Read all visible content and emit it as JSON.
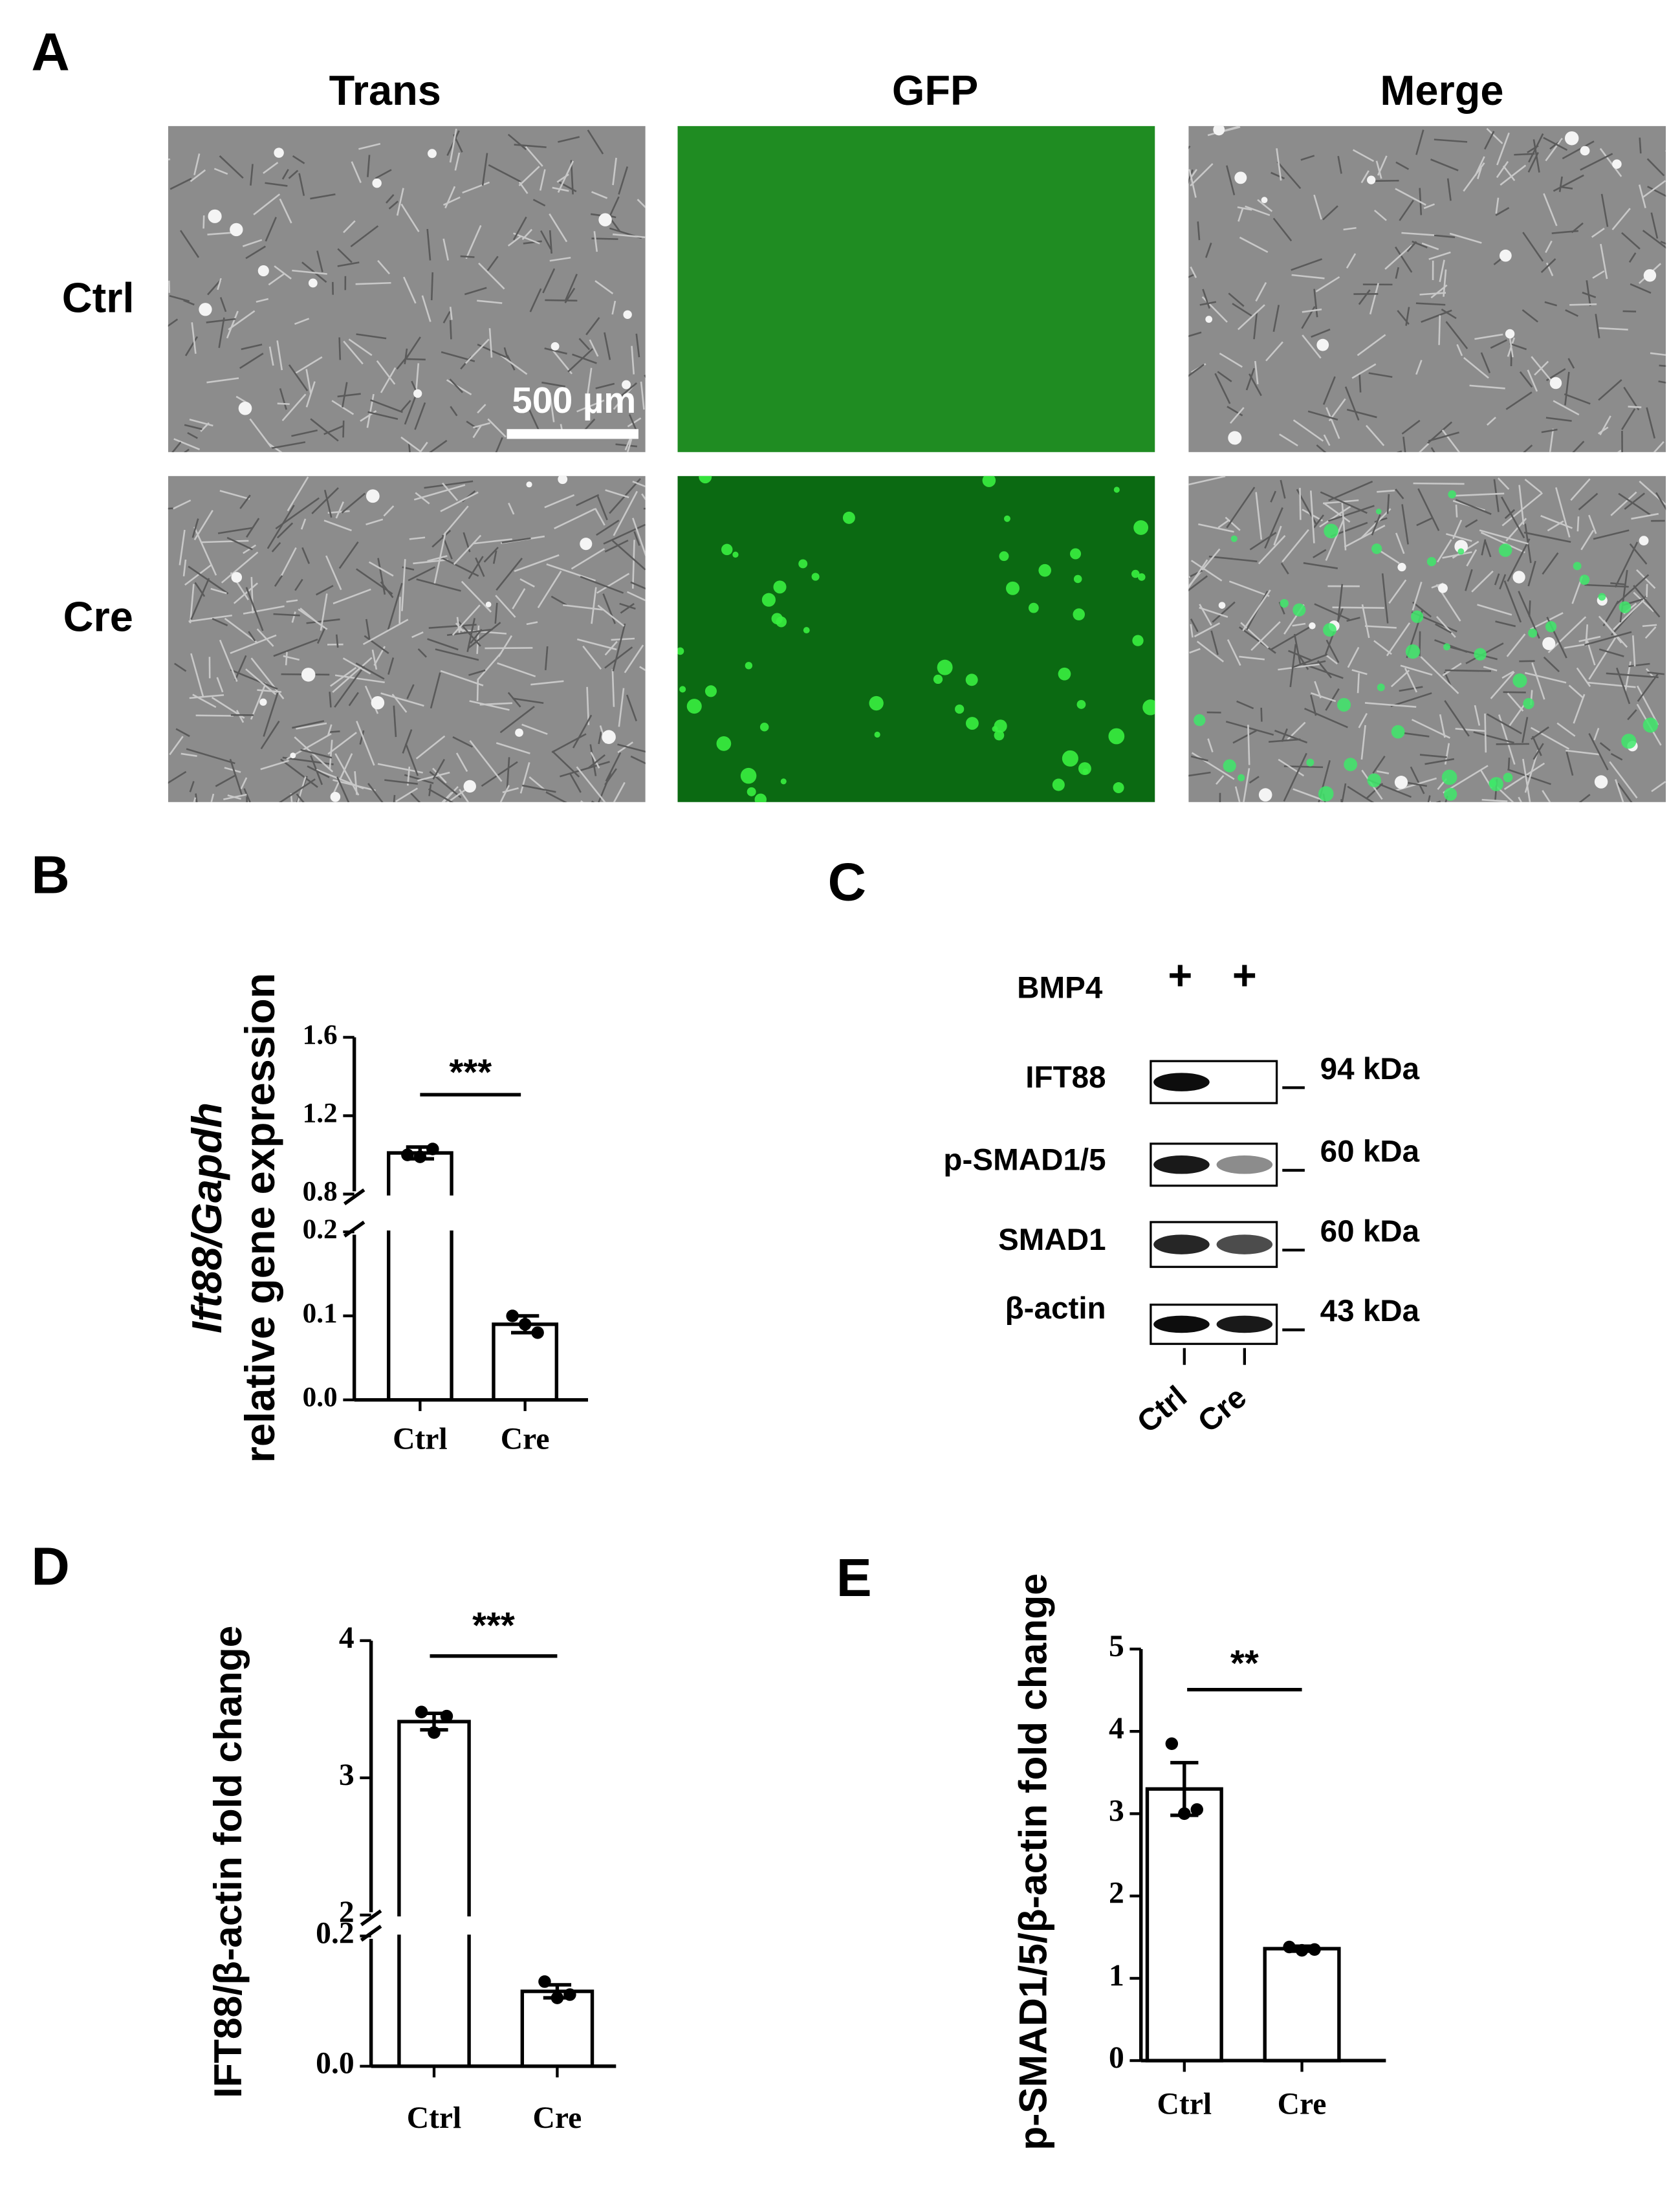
{
  "panel_labels": [
    "A",
    "B",
    "C",
    "D",
    "E"
  ],
  "microscopy": {
    "columns": [
      "Trans",
      "GFP",
      "Merge"
    ],
    "rows": [
      "Ctrl",
      "Cre"
    ],
    "scale_bar": "500 µm"
  },
  "western_blot": {
    "treatment": "BMP4",
    "treatment_marks": [
      "+",
      "+"
    ],
    "bands": [
      {
        "name": "IFT88",
        "size": "94 kDa"
      },
      {
        "name": "p-SMAD1/5",
        "size": "60 kDa"
      },
      {
        "name": "SMAD1",
        "size": "60 kDa"
      },
      {
        "name": "β-actin",
        "size": "43 kDa"
      }
    ],
    "lanes": [
      "Ctrl",
      "Cre"
    ]
  },
  "chart_data": [
    {
      "type": "bar",
      "ylabel": [
        "Ift88/Gapdh",
        "relative gene expression"
      ],
      "categories": [
        "Ctrl",
        "Cre"
      ],
      "values": [
        1.01,
        0.09
      ],
      "errors": [
        0.03,
        0.01
      ],
      "points": [
        [
          1.0,
          1.03,
          0.99
        ],
        [
          0.1,
          0.08,
          0.09
        ]
      ],
      "ylim": [
        0,
        1.6
      ],
      "axis_break": [
        0.2,
        0.8
      ],
      "yticks": [
        {
          "value": 0,
          "label": "0.0"
        },
        0.1,
        0.2,
        0.8,
        1.2,
        1.6
      ],
      "significance": "***",
      "color": "#ffffff"
    },
    {
      "type": "bar",
      "ylabel": [
        "IFT88/β-actin fold change"
      ],
      "categories": [
        "Ctrl",
        "Cre"
      ],
      "values": [
        3.41,
        0.115
      ],
      "errors": [
        0.06,
        0.01
      ],
      "points": [
        [
          3.48,
          3.45,
          3.33
        ],
        [
          0.13,
          0.11,
          0.105
        ]
      ],
      "ylim": [
        0,
        4
      ],
      "axis_break": [
        0.2,
        2
      ],
      "yticks": [
        {
          "value": 0,
          "label": "0.0"
        },
        0.2,
        2,
        3,
        4
      ],
      "significance": "***",
      "color": "#ffffff"
    },
    {
      "type": "bar",
      "ylabel": [
        "p-SMAD1/5/β-actin fold change"
      ],
      "categories": [
        "Ctrl",
        "Cre"
      ],
      "values": [
        3.3,
        1.36
      ],
      "errors": [
        0.32,
        0.03
      ],
      "points": [
        [
          3.85,
          3.05,
          3.0
        ],
        [
          1.38,
          1.35,
          1.34
        ]
      ],
      "ylim": [
        0,
        5
      ],
      "yticks": [
        0,
        1,
        2,
        3,
        4,
        5
      ],
      "significance": "**",
      "color": "#ffffff"
    }
  ]
}
